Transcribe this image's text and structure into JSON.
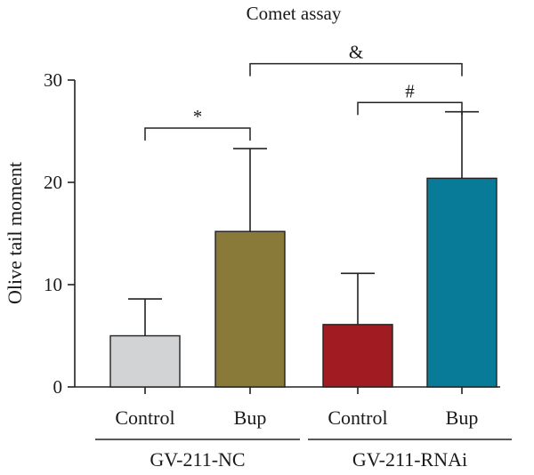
{
  "chart_data": {
    "type": "bar",
    "title": "Comet assay",
    "ylabel": "Olive tail moment",
    "ylim": [
      0,
      30
    ],
    "yticks": [
      0,
      10,
      20,
      30
    ],
    "categories": [
      "Control",
      "Bup",
      "Control",
      "Bup"
    ],
    "values": [
      5.0,
      15.2,
      6.1,
      20.4
    ],
    "errors": [
      3.6,
      8.1,
      5.0,
      6.5
    ],
    "colors": [
      "#d2d3d5",
      "#8a7a3a",
      "#a01c22",
      "#087b98"
    ],
    "groups": [
      {
        "label": "GV-211-NC",
        "members": [
          0,
          1
        ]
      },
      {
        "label": "GV-211-RNAi",
        "members": [
          2,
          3
        ]
      }
    ],
    "significance": [
      {
        "from": 0,
        "to": 1,
        "y": 25.3,
        "label": "*"
      },
      {
        "from": 2,
        "to": 3,
        "y": 27.8,
        "label": "#"
      },
      {
        "from": 1,
        "to": 3,
        "y": 31.6,
        "label": "&"
      }
    ]
  }
}
